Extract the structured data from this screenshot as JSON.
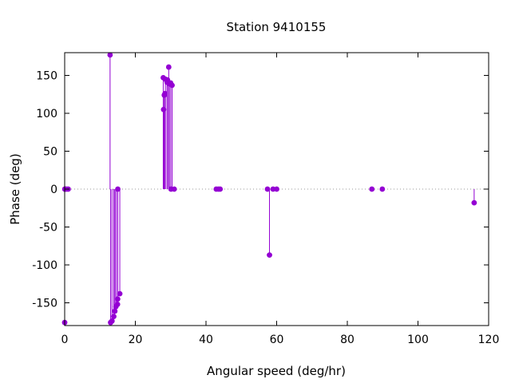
{
  "chart_data": {
    "type": "scatter",
    "style": "impulse-stem",
    "title": "Station 9410155",
    "xlabel": "Angular speed (deg/hr)",
    "ylabel": "Phase (deg)",
    "xlim": [
      0,
      120
    ],
    "ylim": [
      -180,
      180
    ],
    "xticks": [
      0,
      20,
      40,
      60,
      80,
      100,
      120
    ],
    "yticks": [
      -150,
      -100,
      -50,
      0,
      50,
      100,
      150
    ],
    "grid": false,
    "zero_line": "dotted",
    "color": "#9400d3",
    "series": [
      {
        "points": [
          [
            0.0,
            -176
          ],
          [
            0.04,
            0
          ],
          [
            0.08,
            0
          ],
          [
            0.5,
            0
          ],
          [
            1.0,
            0
          ],
          [
            12.85,
            177
          ],
          [
            13.0,
            -176
          ],
          [
            13.4,
            -174
          ],
          [
            13.9,
            -168
          ],
          [
            14.2,
            -161
          ],
          [
            14.5,
            -155
          ],
          [
            14.96,
            -152
          ],
          [
            15.04,
            0
          ],
          [
            15.0,
            -145
          ],
          [
            15.6,
            -138
          ],
          [
            27.9,
            147
          ],
          [
            28.0,
            105
          ],
          [
            28.2,
            124
          ],
          [
            28.4,
            126
          ],
          [
            28.5,
            145
          ],
          [
            28.98,
            141
          ],
          [
            29.1,
            144
          ],
          [
            29.45,
            161
          ],
          [
            29.6,
            139
          ],
          [
            30.0,
            140
          ],
          [
            30.1,
            0
          ],
          [
            30.4,
            137
          ],
          [
            31.0,
            0
          ],
          [
            42.9,
            0
          ],
          [
            43.5,
            0
          ],
          [
            44.0,
            0
          ],
          [
            57.4,
            0
          ],
          [
            57.97,
            -87
          ],
          [
            58.98,
            0
          ],
          [
            60.0,
            0
          ],
          [
            86.95,
            0
          ],
          [
            89.9,
            0
          ],
          [
            115.9,
            -18
          ]
        ]
      }
    ]
  }
}
